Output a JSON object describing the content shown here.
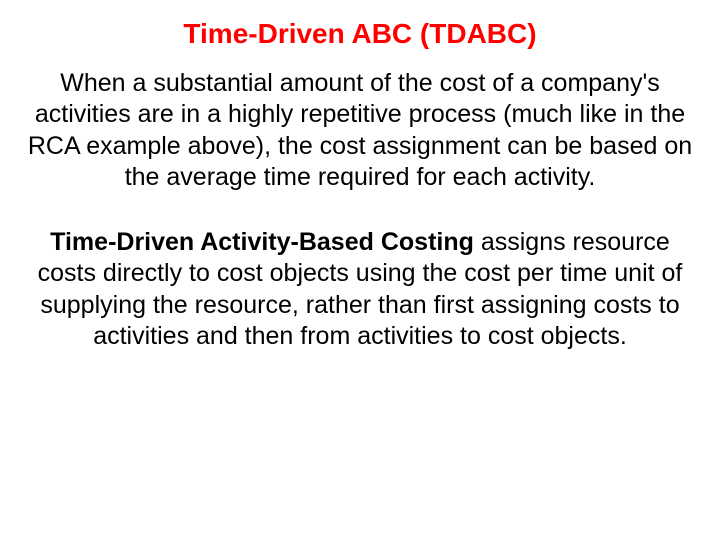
{
  "colors": {
    "title": "#ff0000",
    "body": "#000000",
    "background": "#ffffff"
  },
  "typography": {
    "title_fontsize": 28,
    "body_fontsize": 25,
    "font_family": "Arial",
    "title_weight": "bold"
  },
  "slide": {
    "title": "Time-Driven ABC (TDABC)",
    "paragraph1": "When a substantial amount of the cost of a company's activities are in a highly repetitive process (much like in the RCA example above), the cost assignment can be based on the average time required for each activity.",
    "paragraph2_term": "Time-Driven Activity-Based Costing",
    "paragraph2_rest": " assigns resource costs directly to cost objects using the cost per time unit of supplying the resource, rather than first assigning costs to activities and then from activities to cost objects."
  }
}
